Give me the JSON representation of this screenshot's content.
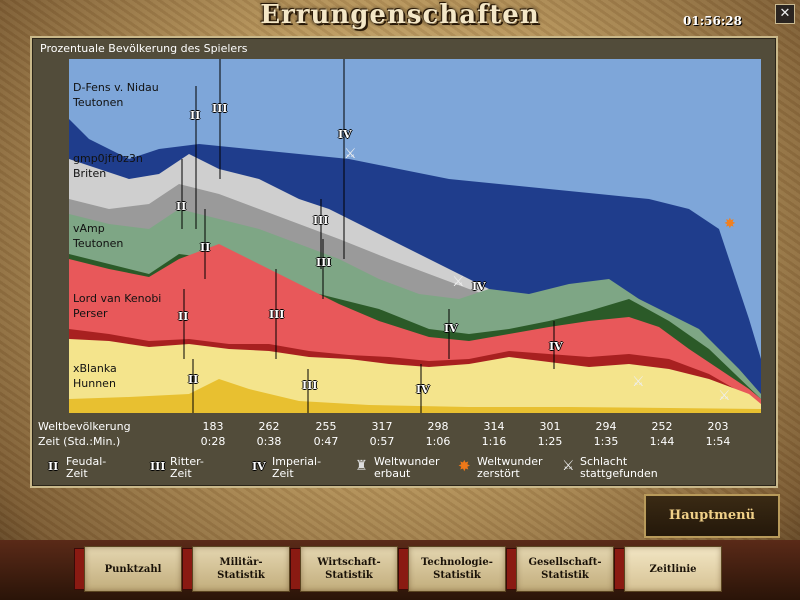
{
  "window": {
    "title": "Errungenschaften",
    "time": "01:56:28",
    "close_label": "✕"
  },
  "panel": {
    "title": "Prozentuale Bevölkerung des Spielers"
  },
  "players": [
    {
      "name": "D-Fens v. Nidau",
      "civ": "Teutonen",
      "color": "#1f3d8c"
    },
    {
      "name": "gmp0jfr0z3n",
      "civ": "Briten",
      "color": "#c8c8c8"
    },
    {
      "name": "vAmp",
      "civ": "Teutonen",
      "color": "#7ea685"
    },
    {
      "name": "Lord van Kenobi",
      "civ": "Perser",
      "color": "#e8585a"
    },
    {
      "name": "xBlanka",
      "civ": "Hunnen",
      "color": "#f4e48c"
    }
  ],
  "stats": {
    "population_label": "Weltbevölkerung",
    "time_label": "Zeit (Std.:Min.)",
    "population": [
      "183",
      "262",
      "255",
      "317",
      "298",
      "314",
      "301",
      "294",
      "252",
      "203"
    ],
    "times": [
      "0:28",
      "0:38",
      "0:47",
      "0:57",
      "1:06",
      "1:16",
      "1:25",
      "1:35",
      "1:44",
      "1:54"
    ]
  },
  "legend": {
    "feudal_glyph": "II",
    "feudal_l1": "Feudal-",
    "feudal_l2": "Zeit",
    "castle_glyph": "III",
    "castle_l1": "Ritter-",
    "castle_l2": "Zeit",
    "imperial_glyph": "IV",
    "imperial_l1": "Imperial-",
    "imperial_l2": "Zeit",
    "wonder_built_l1": "Weltwunder",
    "wonder_built_l2": "erbaut",
    "wonder_destroyed_l1": "Weltwunder",
    "wonder_destroyed_l2": "zerstört",
    "battle_l1": "Schlacht",
    "battle_l2": "stattgefunden",
    "wonder_built_icon": "wonder-icon",
    "wonder_destroyed_icon": "explosion-icon",
    "battle_icon": "battle-axe-icon"
  },
  "buttons": {
    "main_menu": "Hauptmenü"
  },
  "tabs": [
    {
      "label": "Punktzahl"
    },
    {
      "label": "Militär-\nStatistik"
    },
    {
      "label": "Wirtschaft-\nStatistik"
    },
    {
      "label": "Technologie-\nStatistik"
    },
    {
      "label": "Gesellschaft-\nStatistik"
    },
    {
      "label": "Zeitlinie"
    }
  ]
}
